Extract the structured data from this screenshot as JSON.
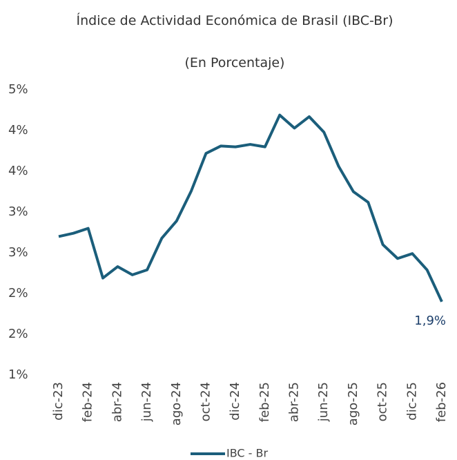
{
  "chart_data": {
    "type": "line",
    "title": "Índice de Actividad Económica de Brasil (IBC-Br)",
    "subtitle": "(En Porcentaje)",
    "categories": [
      "dic-23",
      null,
      "feb-24",
      null,
      "abr-24",
      null,
      "jun-24",
      null,
      "ago-24",
      null,
      "oct-24",
      null,
      "dic-24",
      null,
      "feb-25",
      null,
      "abr-25",
      null,
      "jun-25",
      null,
      "ago-25",
      null,
      "oct-25",
      null,
      "dic-25",
      null,
      "feb-26"
    ],
    "series": [
      {
        "name": "IBC - Br",
        "color": "#1b5e7b",
        "values": [
          2.7,
          2.74,
          2.8,
          2.19,
          2.33,
          2.23,
          2.29,
          2.68,
          2.89,
          3.26,
          3.72,
          3.81,
          3.8,
          3.83,
          3.8,
          4.19,
          4.03,
          4.17,
          3.98,
          3.56,
          3.25,
          3.12,
          2.6,
          2.43,
          2.49,
          2.29,
          1.9
        ],
        "value_labels": [
          null,
          null,
          null,
          null,
          null,
          null,
          null,
          null,
          null,
          null,
          null,
          null,
          null,
          null,
          null,
          null,
          null,
          null,
          null,
          null,
          null,
          null,
          null,
          null,
          null,
          null,
          "1,9%"
        ]
      }
    ],
    "ylim": [
      1,
      4.5
    ],
    "yticks": [
      {
        "value": 1,
        "label": "1%"
      },
      {
        "value": 1.5,
        "label": "2%"
      },
      {
        "value": 2,
        "label": "2%"
      },
      {
        "value": 2.5,
        "label": "3%"
      },
      {
        "value": 3,
        "label": "3%"
      },
      {
        "value": 3.5,
        "label": "4%"
      },
      {
        "value": 4,
        "label": "4%"
      },
      {
        "value": 4.5,
        "label": "5%"
      }
    ],
    "grid": false,
    "legend": "bottom"
  }
}
